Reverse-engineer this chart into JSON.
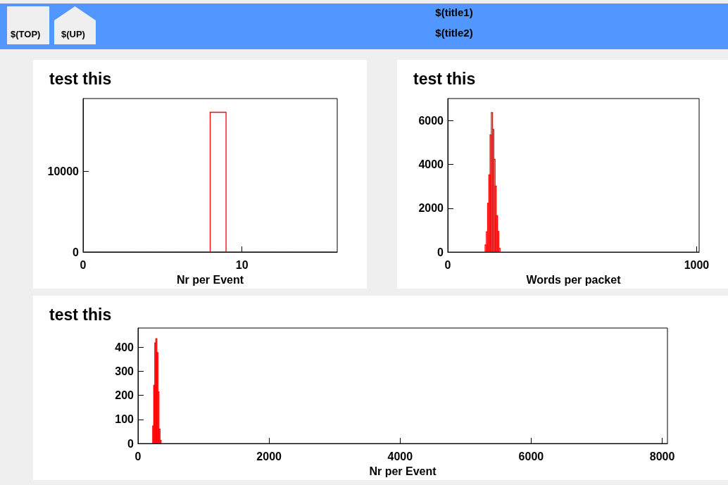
{
  "chart_data": [
    {
      "type": "other",
      "title": "$(title1)",
      "subtitle": "$(title2)",
      "annotations": [
        "$(TOP)",
        "$(UP)"
      ]
    },
    {
      "type": "histogram",
      "title": "test this",
      "xlabel": "Nr per Event",
      "bins": [
        0,
        1,
        2,
        3,
        4,
        5,
        6,
        7,
        8,
        9,
        10,
        11,
        12,
        13,
        14,
        15,
        16
      ],
      "values": [
        0,
        0,
        0,
        0,
        0,
        0,
        0,
        0,
        17300,
        0,
        0,
        0,
        0,
        0,
        0,
        0
      ],
      "color": "#ff0000",
      "xlim": [
        0,
        16
      ],
      "xticks": [
        0,
        10
      ],
      "ylim": [
        0,
        19000
      ],
      "yticks": [
        0,
        10000
      ],
      "grid": false
    },
    {
      "type": "histogram",
      "title": "test this",
      "xlabel": "Words per packet",
      "bins": [
        150,
        155,
        160,
        165,
        170,
        175,
        180,
        185,
        190,
        195,
        200,
        205,
        210
      ],
      "values": [
        330,
        920,
        2220,
        3520,
        5340,
        6360,
        5590,
        4230,
        3010,
        1660,
        940,
        170
      ],
      "color": "#ff0000",
      "xlim": [
        0,
        1010
      ],
      "xticks": [
        0,
        1000
      ],
      "ylim": [
        0,
        7000
      ],
      "yticks": [
        0,
        2000,
        4000,
        6000
      ],
      "grid": false
    },
    {
      "type": "histogram",
      "title": "test this",
      "xlabel": "Nr per Event",
      "bins": [
        224,
        240,
        256,
        272,
        288,
        304,
        320,
        336,
        352
      ],
      "values": [
        73,
        242,
        418,
        436,
        378,
        215,
        60,
        13
      ],
      "color": "#ff0000",
      "xlim": [
        0,
        8080
      ],
      "xticks": [
        0,
        2000,
        4000,
        6000,
        8000
      ],
      "ylim": [
        0,
        480
      ],
      "yticks": [
        0,
        100,
        200,
        300,
        400
      ],
      "grid": false
    }
  ]
}
